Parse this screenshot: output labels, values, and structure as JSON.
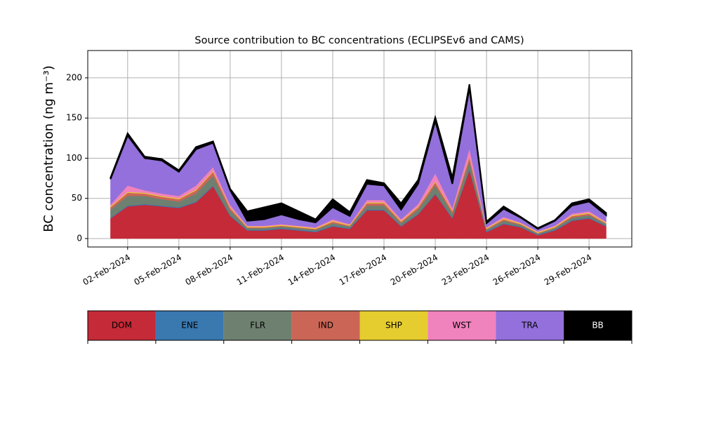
{
  "chart_data": {
    "type": "stackedarea",
    "title": "Source contribution to BC concentrations (ECLIPSEv6 and CAMS)",
    "y_label": "BC concentration (ng m⁻³)",
    "x": [
      "2024-02-01",
      "2024-02-02",
      "2024-02-03",
      "2024-02-04",
      "2024-02-05",
      "2024-02-06",
      "2024-02-07",
      "2024-02-08",
      "2024-02-09",
      "2024-02-10",
      "2024-02-11",
      "2024-02-12",
      "2024-02-13",
      "2024-02-14",
      "2024-02-15",
      "2024-02-16",
      "2024-02-17",
      "2024-02-18",
      "2024-02-19",
      "2024-02-20",
      "2024-02-21",
      "2024-02-22",
      "2024-02-23",
      "2024-02-24",
      "2024-02-25",
      "2024-02-26",
      "2024-02-27",
      "2024-02-28",
      "2024-02-29",
      "2024-03-01"
    ],
    "series": [
      {
        "name": "DOM",
        "color": "#c52a38",
        "values": [
          25,
          40,
          42,
          40,
          38,
          45,
          65,
          28,
          10,
          10,
          12,
          10,
          8,
          15,
          12,
          35,
          35,
          15,
          30,
          55,
          25,
          85,
          8,
          18,
          14,
          4,
          10,
          22,
          25,
          15
        ]
      },
      {
        "name": "ENE",
        "color": "#3a78b0",
        "values": [
          1,
          1,
          1,
          1,
          1,
          1,
          1,
          1,
          1,
          1,
          1,
          1,
          1,
          1,
          1,
          1,
          1,
          1,
          1,
          1,
          1,
          1,
          1,
          1,
          1,
          1,
          1,
          1,
          1,
          1
        ]
      },
      {
        "name": "FLR",
        "color": "#6e8070",
        "values": [
          10,
          12,
          10,
          8,
          7,
          10,
          12,
          6,
          2,
          2,
          2,
          2,
          2,
          3,
          2,
          5,
          5,
          3,
          5,
          10,
          5,
          10,
          2,
          3,
          2,
          1,
          2,
          3,
          3,
          2
        ]
      },
      {
        "name": "IND",
        "color": "#cb6656",
        "values": [
          3,
          4,
          3,
          3,
          3,
          4,
          5,
          3,
          1,
          1,
          1,
          1,
          1,
          2,
          1,
          3,
          3,
          2,
          3,
          4,
          3,
          5,
          1,
          2,
          1,
          1,
          1,
          2,
          2,
          1
        ]
      },
      {
        "name": "SHP",
        "color": "#e6cd2f",
        "values": [
          1,
          1,
          1,
          1,
          1,
          1,
          1,
          1,
          1,
          1,
          1,
          1,
          1,
          1,
          1,
          1,
          1,
          1,
          1,
          1,
          1,
          1,
          1,
          1,
          1,
          1,
          1,
          1,
          1,
          1
        ]
      },
      {
        "name": "WST",
        "color": "#f082bd",
        "values": [
          2,
          8,
          3,
          3,
          3,
          5,
          5,
          3,
          1,
          1,
          1,
          1,
          1,
          2,
          1,
          3,
          3,
          2,
          3,
          10,
          3,
          10,
          1,
          2,
          1,
          1,
          1,
          2,
          2,
          1
        ]
      },
      {
        "name": "TRA",
        "color": "#9370db",
        "values": [
          32,
          62,
          40,
          41,
          30,
          45,
          30,
          18,
          6,
          8,
          12,
          8,
          6,
          15,
          10,
          20,
          18,
          12,
          25,
          65,
          30,
          75,
          5,
          10,
          6,
          3,
          6,
          10,
          12,
          8
        ]
      },
      {
        "name": "BB",
        "color": "#000000",
        "values": [
          2,
          3,
          2,
          2,
          2,
          3,
          2,
          2,
          12,
          15,
          14,
          10,
          4,
          10,
          5,
          5,
          3,
          8,
          5,
          5,
          8,
          5,
          2,
          3,
          1,
          1,
          1,
          3,
          3,
          3
        ]
      }
    ],
    "xlim": [
      "2024-01-30T16:00",
      "2024-03-02T12:00"
    ],
    "xticks": [
      {
        "value": "2024-02-02",
        "label": "02-Feb-2024"
      },
      {
        "value": "2024-02-05",
        "label": "05-Feb-2024"
      },
      {
        "value": "2024-02-08",
        "label": "08-Feb-2024"
      },
      {
        "value": "2024-02-11",
        "label": "11-Feb-2024"
      },
      {
        "value": "2024-02-14",
        "label": "14-Feb-2024"
      },
      {
        "value": "2024-02-17",
        "label": "17-Feb-2024"
      },
      {
        "value": "2024-02-20",
        "label": "20-Feb-2024"
      },
      {
        "value": "2024-02-23",
        "label": "23-Feb-2024"
      },
      {
        "value": "2024-02-26",
        "label": "26-Feb-2024"
      },
      {
        "value": "2024-02-29",
        "label": "29-Feb-2024"
      }
    ],
    "ylim": [
      -10.5,
      234
    ],
    "yticks": [
      0,
      50,
      100,
      150,
      200
    ],
    "grid": true,
    "legend": "bottom"
  }
}
